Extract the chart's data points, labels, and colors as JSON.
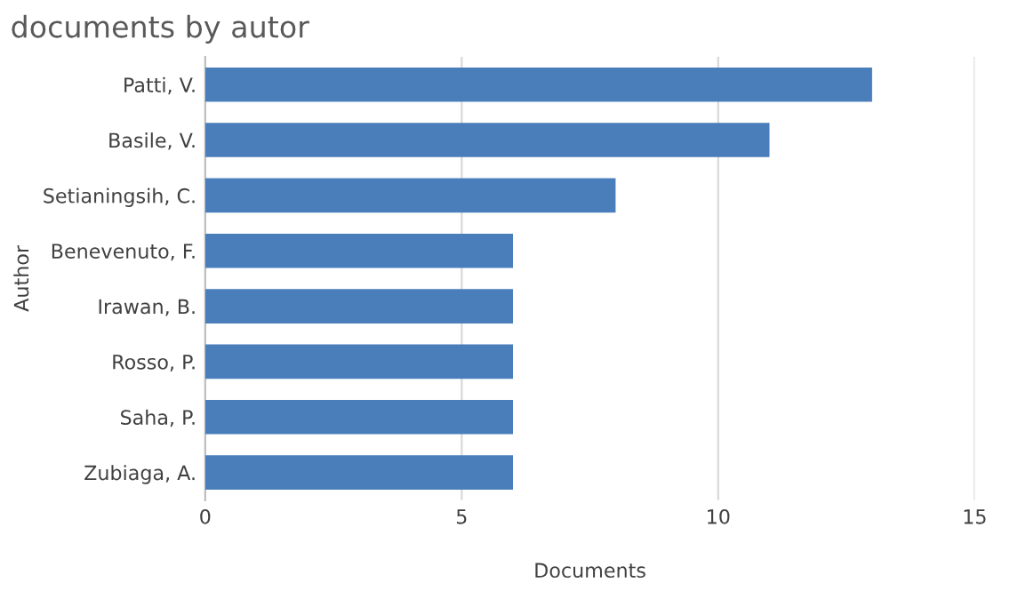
{
  "chart_data": {
    "type": "bar",
    "orientation": "horizontal",
    "title": "documents by autor",
    "xlabel": "Documents",
    "ylabel": "Author",
    "categories": [
      "Patti, V.",
      "Basile, V.",
      "Setianingsih, C.",
      "Benevenuto, F.",
      "Irawan, B.",
      "Rosso, P.",
      "Saha, P.",
      "Zubiaga, A."
    ],
    "values": [
      13,
      11,
      8,
      6,
      6,
      6,
      6,
      6
    ],
    "color": "#4a7ebb",
    "xlim": [
      0,
      15
    ],
    "xticks": [
      0,
      5,
      10,
      15
    ],
    "grid": "x",
    "legend": false
  }
}
